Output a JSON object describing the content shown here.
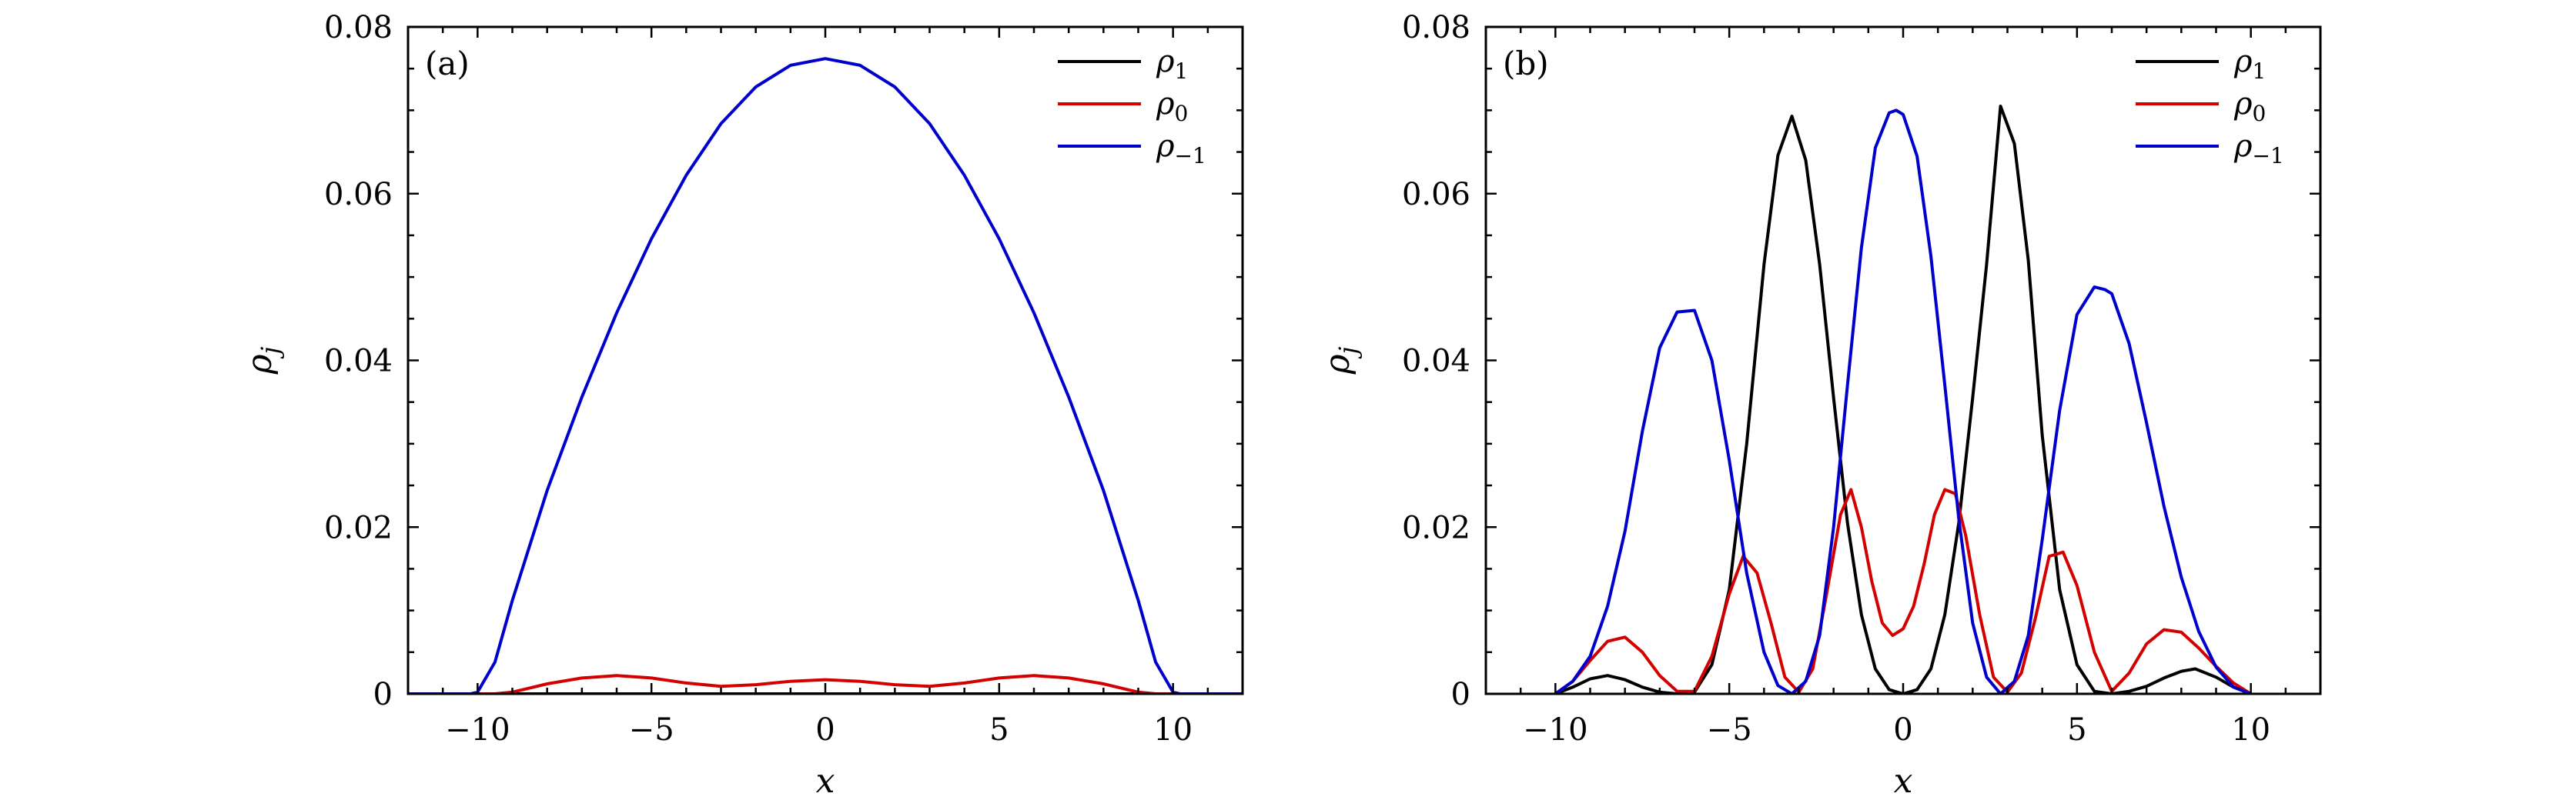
{
  "chart_data": [
    {
      "type": "line",
      "panel_label": "(a)",
      "xlabel": "x",
      "ylabel": "ρj",
      "ylabel_parts": [
        "ρ",
        "j"
      ],
      "xlim": [
        -12,
        12
      ],
      "ylim": [
        0,
        0.08
      ],
      "xticks": [
        -10,
        -5,
        0,
        5,
        10
      ],
      "xtick_labels": [
        "−10",
        "−5",
        "0",
        "5",
        "10"
      ],
      "yticks": [
        0,
        0.02,
        0.04,
        0.06,
        0.08
      ],
      "ytick_labels": [
        "0",
        "0.02",
        "0.04",
        "0.06",
        "0.08"
      ],
      "legend_position": "top-right",
      "series": [
        {
          "name": "ρ1",
          "symbol": "ρ",
          "sub": "1",
          "color": "#000000",
          "x": [
            -12,
            -10,
            10,
            12
          ],
          "y": [
            0,
            0,
            0,
            0
          ]
        },
        {
          "name": "ρ0",
          "symbol": "ρ",
          "sub": "0",
          "color": "#d40000",
          "x": [
            -12,
            -10,
            -9.5,
            -9,
            -8,
            -7,
            -6,
            -5,
            -4,
            -3,
            -2,
            -1,
            0,
            1,
            2,
            3,
            4,
            5,
            6,
            7,
            8,
            9,
            9.5,
            10,
            12
          ],
          "y": [
            0,
            0,
            0,
            0.0002,
            0.0012,
            0.0019,
            0.0022,
            0.0019,
            0.0013,
            0.0009,
            0.0011,
            0.0015,
            0.0017,
            0.0015,
            0.0011,
            0.0009,
            0.0013,
            0.0019,
            0.0022,
            0.0019,
            0.0012,
            0.0002,
            0,
            0,
            0
          ]
        },
        {
          "name": "ρ−1",
          "symbol": "ρ",
          "sub": "−1",
          "color": "#0000cc",
          "x": [
            -12,
            -10.2,
            -10,
            -9.5,
            -9,
            -8,
            -7,
            -6,
            -5,
            -4,
            -3,
            -2,
            -1,
            0,
            1,
            2,
            3,
            4,
            5,
            6,
            7,
            8,
            9,
            9.5,
            10,
            10.2,
            12
          ],
          "y": [
            0,
            0,
            0.0002,
            0.0038,
            0.0112,
            0.0244,
            0.0356,
            0.0457,
            0.0546,
            0.0622,
            0.0684,
            0.0728,
            0.0754,
            0.0762,
            0.0754,
            0.0728,
            0.0684,
            0.0622,
            0.0546,
            0.0457,
            0.0356,
            0.0244,
            0.0112,
            0.0038,
            0.0002,
            0,
            0
          ]
        }
      ]
    },
    {
      "type": "line",
      "panel_label": "(b)",
      "xlabel": "x",
      "ylabel": "ρj",
      "ylabel_parts": [
        "ρ",
        "j"
      ],
      "xlim": [
        -12,
        12
      ],
      "ylim": [
        0,
        0.08
      ],
      "xticks": [
        -10,
        -5,
        0,
        5,
        10
      ],
      "xtick_labels": [
        "−10",
        "−5",
        "0",
        "5",
        "10"
      ],
      "yticks": [
        0,
        0.02,
        0.04,
        0.06,
        0.08
      ],
      "ytick_labels": [
        "0",
        "0.02",
        "0.04",
        "0.06",
        "0.08"
      ],
      "legend_position": "top-right",
      "series": [
        {
          "name": "ρ1",
          "symbol": "ρ",
          "sub": "1",
          "color": "#000000",
          "x": [
            -10,
            -9.5,
            -9,
            -8.5,
            -8,
            -7.5,
            -7,
            -6.5,
            -6,
            -5.5,
            -5,
            -4.5,
            -4,
            -3.6,
            -3.2,
            -2.8,
            -2.4,
            -2,
            -1.6,
            -1.2,
            -0.8,
            -0.4,
            0,
            0.4,
            0.8,
            1.2,
            1.6,
            2,
            2.4,
            2.8,
            3.2,
            3.6,
            4,
            4.5,
            5,
            5.5,
            6,
            6.5,
            7,
            7.5,
            8,
            8.4,
            9,
            9.5,
            10
          ],
          "y": [
            0,
            0.0008,
            0.0018,
            0.0022,
            0.0017,
            0.0008,
            0.0002,
            0,
            0.0002,
            0.0035,
            0.0125,
            0.03,
            0.0515,
            0.0646,
            0.0693,
            0.064,
            0.0515,
            0.0355,
            0.0205,
            0.0095,
            0.003,
            0.0005,
            0,
            0.0005,
            0.003,
            0.0095,
            0.0205,
            0.0355,
            0.0515,
            0.0705,
            0.066,
            0.052,
            0.031,
            0.0125,
            0.0035,
            0.0003,
            0,
            0.0003,
            0.0009,
            0.0019,
            0.0027,
            0.003,
            0.002,
            0.0008,
            0
          ]
        },
        {
          "name": "ρ0",
          "symbol": "ρ",
          "sub": "0",
          "color": "#d40000",
          "x": [
            -10,
            -9.5,
            -9,
            -8.5,
            -8,
            -7.5,
            -7,
            -6.5,
            -6,
            -5.5,
            -5,
            -4.6,
            -4.2,
            -3.8,
            -3.4,
            -3,
            -2.6,
            -2.2,
            -1.8,
            -1.5,
            -1.2,
            -0.9,
            -0.6,
            -0.3,
            0,
            0.3,
            0.6,
            0.9,
            1.2,
            1.5,
            1.8,
            2.2,
            2.6,
            3,
            3.4,
            3.8,
            4.2,
            4.6,
            5,
            5.5,
            6,
            6.5,
            7,
            7.5,
            8,
            8.5,
            9,
            9.5,
            10
          ],
          "y": [
            0,
            0.0015,
            0.004,
            0.0063,
            0.0068,
            0.005,
            0.0022,
            0.0003,
            0.0003,
            0.0045,
            0.012,
            0.0165,
            0.0145,
            0.0085,
            0.002,
            0.0002,
            0.003,
            0.012,
            0.0215,
            0.0245,
            0.02,
            0.0135,
            0.0085,
            0.007,
            0.0078,
            0.0105,
            0.0155,
            0.0215,
            0.0245,
            0.024,
            0.019,
            0.0095,
            0.002,
            0.0002,
            0.0025,
            0.009,
            0.0165,
            0.017,
            0.013,
            0.005,
            0.0003,
            0.0025,
            0.006,
            0.0077,
            0.0074,
            0.0055,
            0.0033,
            0.0013,
            0
          ]
        },
        {
          "name": "ρ−1",
          "symbol": "ρ",
          "sub": "−1",
          "color": "#0000cc",
          "x": [
            -10,
            -9.5,
            -9,
            -8.5,
            -8,
            -7.5,
            -7,
            -6.5,
            -6,
            -5.5,
            -5,
            -4.5,
            -4,
            -3.6,
            -3.2,
            -2.8,
            -2.4,
            -2,
            -1.6,
            -1.2,
            -0.8,
            -0.4,
            -0.2,
            0,
            0.4,
            0.8,
            1.2,
            1.6,
            2,
            2.4,
            2.8,
            3.2,
            3.6,
            4,
            4.5,
            5,
            5.5,
            5.8,
            6,
            6.5,
            7,
            7.5,
            8,
            8.5,
            9,
            9.5,
            10
          ],
          "y": [
            0,
            0.0015,
            0.0045,
            0.0105,
            0.0195,
            0.0315,
            0.0415,
            0.0458,
            0.046,
            0.04,
            0.028,
            0.0145,
            0.005,
            0.001,
            0,
            0.0015,
            0.007,
            0.02,
            0.037,
            0.0535,
            0.0655,
            0.0697,
            0.07,
            0.0695,
            0.0645,
            0.0525,
            0.037,
            0.021,
            0.0085,
            0.002,
            0,
            0.0015,
            0.007,
            0.0185,
            0.034,
            0.0455,
            0.0488,
            0.0485,
            0.048,
            0.042,
            0.0325,
            0.0225,
            0.014,
            0.0075,
            0.0032,
            0.0008,
            0
          ]
        }
      ]
    }
  ]
}
